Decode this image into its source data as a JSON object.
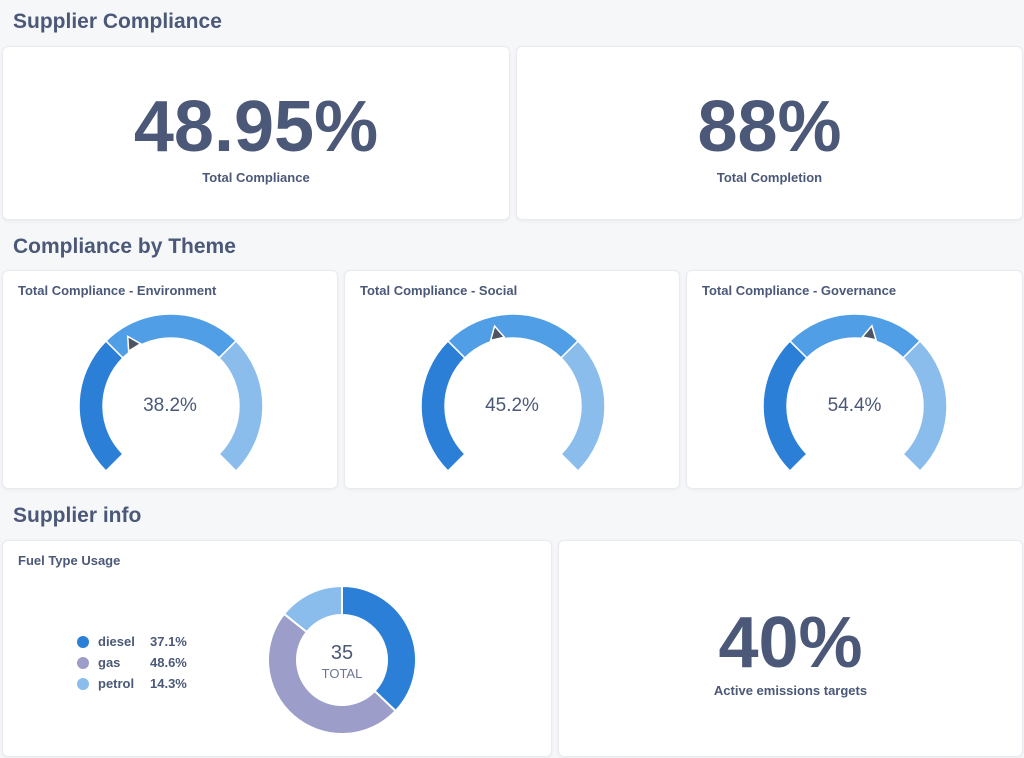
{
  "sections": {
    "supplier_compliance": "Supplier Compliance",
    "compliance_by_theme": "Compliance by Theme",
    "supplier_info": "Supplier info"
  },
  "kpis": {
    "total_compliance": {
      "value": "48.95%",
      "label": "Total Compliance"
    },
    "total_completion": {
      "value": "88%",
      "label": "Total Completion"
    },
    "active_emissions": {
      "value": "40%",
      "label": "Active emissions targets"
    }
  },
  "gauges": [
    {
      "title": "Total Compliance - Environment",
      "value_label": "38.2%",
      "value": 38.2
    },
    {
      "title": "Total Compliance - Social",
      "value_label": "45.2%",
      "value": 45.2
    },
    {
      "title": "Total Compliance - Governance",
      "value_label": "54.4%",
      "value": 54.4
    }
  ],
  "chart_data": {
    "type": "pie",
    "title": "Fuel Type Usage",
    "total_value": "35",
    "total_label": "TOTAL",
    "categories": [
      "diesel",
      "gas",
      "petrol"
    ],
    "values": [
      37.1,
      48.6,
      14.3
    ],
    "value_labels": [
      "37.1%",
      "48.6%",
      "14.3%"
    ],
    "colors": [
      "#2c7fd6",
      "#9c9ec9",
      "#8bbdec"
    ]
  },
  "colors": {
    "gauge_low": "#2c7fd6",
    "gauge_mid": "#509fe6",
    "gauge_high": "#8bbdec",
    "pointer": "#4b5563"
  }
}
